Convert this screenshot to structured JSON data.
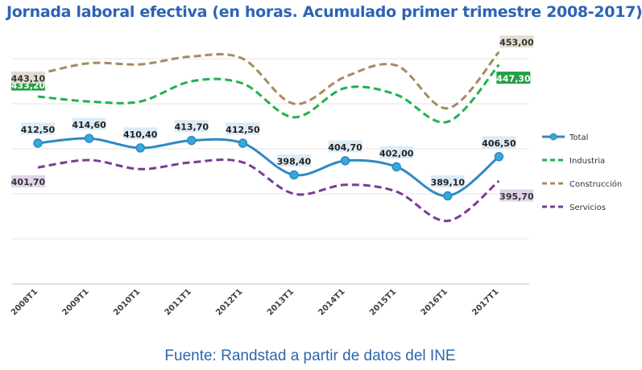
{
  "title": "Jornada laboral efectiva (en horas. Acumulado primer trimestre 2008-2017)",
  "source": "Fuente: Randstad a partir de datos del INE",
  "chart_data": {
    "type": "line",
    "categories": [
      "2008T1",
      "2009T1",
      "2010T1",
      "2011T1",
      "2012T1",
      "2013T1",
      "2014T1",
      "2015T1",
      "2016T1",
      "2017T1"
    ],
    "ylim": [
      350,
      460
    ],
    "grid": true,
    "legend_position": "right",
    "series": [
      {
        "name": "Total",
        "color": "#2e8ac2",
        "style": "solid",
        "markers": true,
        "values": [
          412.5,
          414.6,
          410.4,
          413.7,
          412.5,
          398.4,
          404.7,
          402.0,
          389.1,
          406.5
        ],
        "labels": [
          "412,50",
          "414,60",
          "410,40",
          "413,70",
          "412,50",
          "398,40",
          "404,70",
          "402,00",
          "389,10",
          "406,50"
        ]
      },
      {
        "name": "Industria",
        "color": "#22b14c",
        "style": "dashed",
        "markers": false,
        "values": [
          433.2,
          431.0,
          431.0,
          440.0,
          439.0,
          424.0,
          437.0,
          434.0,
          422.0,
          447.3
        ],
        "labels": [
          "433,20",
          "",
          "",
          "",
          "",
          "",
          "",
          "",
          "",
          "447,30"
        ]
      },
      {
        "name": "Construcción",
        "color": "#a48c5c",
        "style": "dashed",
        "markers": false,
        "values": [
          443.1,
          448.0,
          447.5,
          451.0,
          450.0,
          430.0,
          442.0,
          447.0,
          428.0,
          453.0
        ],
        "labels": [
          "443,10",
          "",
          "",
          "",
          "",
          "",
          "",
          "",
          "",
          "453,00"
        ]
      },
      {
        "name": "Servicios",
        "color": "#7b3c96",
        "style": "dashed",
        "markers": false,
        "values": [
          401.7,
          405.0,
          401.0,
          404.0,
          404.0,
          390.0,
          394.0,
          391.0,
          378.0,
          395.7
        ],
        "labels": [
          "401,70",
          "",
          "",
          "",
          "",
          "",
          "",
          "",
          "",
          "395,70"
        ]
      }
    ]
  }
}
